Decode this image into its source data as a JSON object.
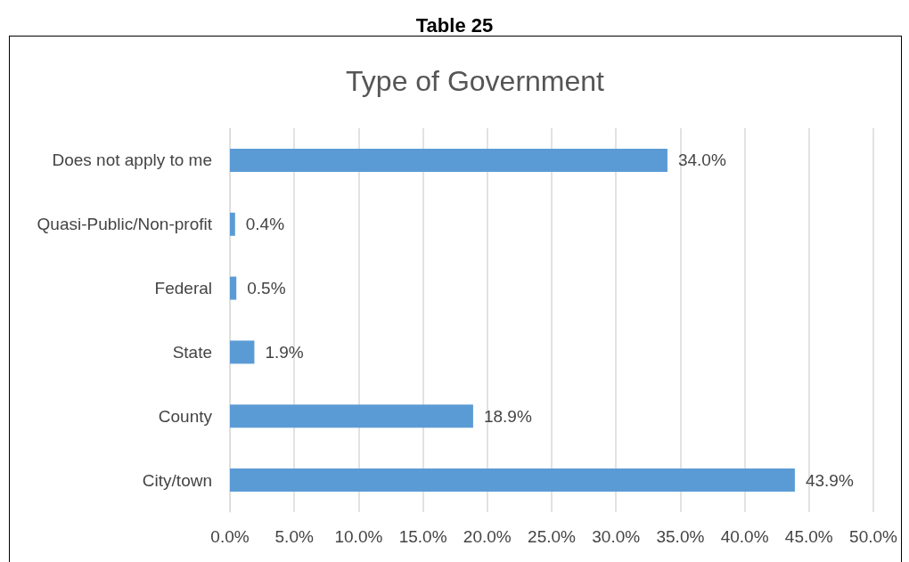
{
  "chart_data": {
    "type": "bar",
    "orientation": "horizontal",
    "title": "Table 25",
    "subtitle": "Type of Government",
    "categories": [
      "Does not apply to me",
      "Quasi-Public/Non-profit",
      "Federal",
      "State",
      "County",
      "City/town"
    ],
    "values": [
      34.0,
      0.4,
      0.5,
      1.9,
      18.9,
      43.9
    ],
    "value_labels": [
      "34.0%",
      "0.4%",
      "0.5%",
      "1.9%",
      "18.9%",
      "43.9%"
    ],
    "color": "#5b9bd5",
    "xlim": [
      0,
      50
    ],
    "xticks": [
      {
        "value": 0,
        "label": "0.0%"
      },
      {
        "value": 5,
        "label": "5.0%"
      },
      {
        "value": 10,
        "label": "10.0%"
      },
      {
        "value": 15,
        "label": "15.0%"
      },
      {
        "value": 20,
        "label": "20.0%"
      },
      {
        "value": 25,
        "label": "25.0%"
      },
      {
        "value": 30,
        "label": "30.0%"
      },
      {
        "value": 35,
        "label": "35.0%"
      },
      {
        "value": 40,
        "label": "40.0%"
      },
      {
        "value": 45,
        "label": "45.0%"
      },
      {
        "value": 50,
        "label": "50.0%"
      }
    ],
    "grid": "x"
  }
}
